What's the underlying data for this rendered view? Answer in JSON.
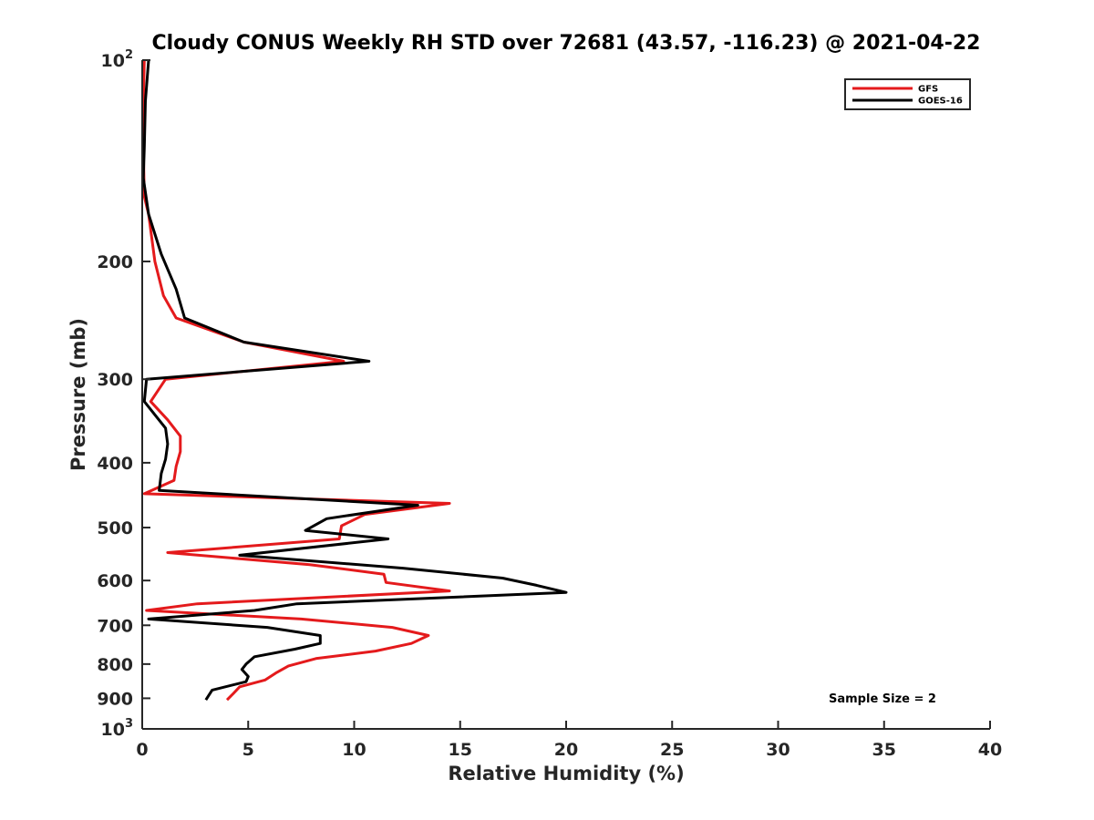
{
  "chart_data": {
    "type": "line",
    "title": "Cloudy CONUS Weekly RH STD over 72681 (43.57, -116.23) @ 2021-04-22",
    "xlabel": "Relative Humidity (%)",
    "ylabel": "Pressure (mb)",
    "xlim": [
      0,
      40
    ],
    "ylim": [
      100,
      1000
    ],
    "y_scale": "log",
    "y_reversed": true,
    "x_ticks": [
      "0",
      "5",
      "10",
      "15",
      "20",
      "25",
      "30",
      "35",
      "40"
    ],
    "y_ticks": [
      {
        "value": 100,
        "base": "10",
        "exp": "2"
      },
      {
        "value": 200,
        "label": "200"
      },
      {
        "value": 300,
        "label": "300"
      },
      {
        "value": 400,
        "label": "400"
      },
      {
        "value": 500,
        "label": "500"
      },
      {
        "value": 600,
        "label": "600"
      },
      {
        "value": 700,
        "label": "700"
      },
      {
        "value": 800,
        "label": "800"
      },
      {
        "value": 900,
        "label": "900"
      },
      {
        "value": 1000,
        "base": "10",
        "exp": "3"
      }
    ],
    "legend_position": "top-right",
    "annotation": "Sample Size = 2",
    "series": [
      {
        "name": "GFS",
        "color": "#e41a1c",
        "points": [
          [
            0.1,
            100
          ],
          [
            0.05,
            115
          ],
          [
            0.05,
            135
          ],
          [
            0.1,
            160
          ],
          [
            0.3,
            170
          ],
          [
            0.6,
            200
          ],
          [
            1.0,
            225
          ],
          [
            1.6,
            243
          ],
          [
            4.8,
            264
          ],
          [
            9.5,
            282
          ],
          [
            1.1,
            300
          ],
          [
            0.4,
            324
          ],
          [
            1.2,
            345
          ],
          [
            1.8,
            365
          ],
          [
            1.8,
            385
          ],
          [
            1.6,
            405
          ],
          [
            1.5,
            425
          ],
          [
            0.1,
            445
          ],
          [
            14.5,
            460
          ],
          [
            10.5,
            478
          ],
          [
            9.4,
            497
          ],
          [
            9.3,
            520
          ],
          [
            1.2,
            545
          ],
          [
            7.9,
            568
          ],
          [
            11.4,
            587
          ],
          [
            11.5,
            604
          ],
          [
            14.5,
            622
          ],
          [
            2.6,
            650
          ],
          [
            0.2,
            665
          ],
          [
            7.5,
            685
          ],
          [
            11.8,
            705
          ],
          [
            13.5,
            725
          ],
          [
            12.7,
            745
          ],
          [
            11.0,
            765
          ],
          [
            8.2,
            785
          ],
          [
            6.9,
            805
          ],
          [
            6.3,
            825
          ],
          [
            5.8,
            845
          ],
          [
            4.6,
            865
          ],
          [
            4.3,
            885
          ],
          [
            4.0,
            905
          ]
        ]
      },
      {
        "name": "GOES-16",
        "color": "#000000",
        "points": [
          [
            0.3,
            100
          ],
          [
            0.15,
            115
          ],
          [
            0.1,
            135
          ],
          [
            0.05,
            150
          ],
          [
            0.3,
            170
          ],
          [
            0.9,
            195
          ],
          [
            1.6,
            220
          ],
          [
            2.0,
            243
          ],
          [
            4.8,
            264
          ],
          [
            10.7,
            282
          ],
          [
            0.2,
            300
          ],
          [
            0.1,
            324
          ],
          [
            1.1,
            355
          ],
          [
            1.2,
            375
          ],
          [
            1.1,
            395
          ],
          [
            0.9,
            415
          ],
          [
            0.8,
            440
          ],
          [
            13.0,
            463
          ],
          [
            8.7,
            485
          ],
          [
            7.7,
            505
          ],
          [
            11.6,
            520
          ],
          [
            4.6,
            550
          ],
          [
            12.3,
            575
          ],
          [
            17.0,
            595
          ],
          [
            18.6,
            610
          ],
          [
            20.0,
            625
          ],
          [
            7.3,
            650
          ],
          [
            5.3,
            665
          ],
          [
            0.3,
            685
          ],
          [
            5.9,
            705
          ],
          [
            8.4,
            725
          ],
          [
            8.4,
            745
          ],
          [
            7.2,
            760
          ],
          [
            5.3,
            780
          ],
          [
            4.9,
            800
          ],
          [
            4.7,
            815
          ],
          [
            5.0,
            835
          ],
          [
            4.9,
            850
          ],
          [
            3.3,
            875
          ],
          [
            3.0,
            905
          ]
        ]
      }
    ]
  }
}
